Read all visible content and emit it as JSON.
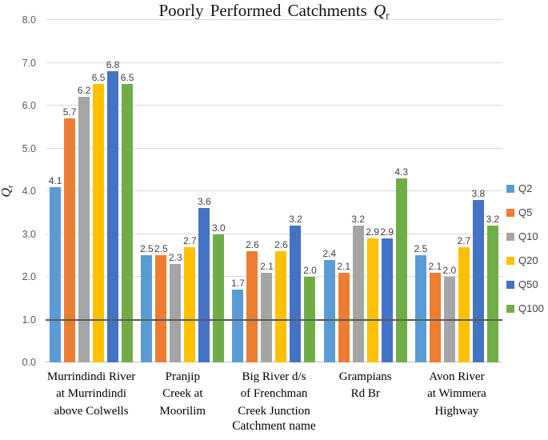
{
  "chart_data": {
    "type": "bar",
    "title": "Poorly Performed Catchments Qr",
    "title_parts": {
      "text": "Poorly Performed Catchments",
      "symbol": "Q",
      "sub": "r"
    },
    "xlabel": "Catchment name",
    "ylabel": "Qr",
    "ylabel_parts": {
      "symbol": "Q",
      "sub": "r"
    },
    "ylim": [
      0,
      8
    ],
    "ytick_step": 1,
    "ytick_decimals": 1,
    "grid": true,
    "gridline_color": "#D9D9D9",
    "reference_line": {
      "y": 1.0,
      "color": "#595959"
    },
    "legend_position": "right",
    "categories": [
      "Murrindindi River at Murrindindi above Colwells",
      "Pranjip Creek at Moorilim",
      "Big River d/s of Frenchman Creek Junction",
      "Grampians Rd Br",
      "Avon River at Wimmera Highway"
    ],
    "category_label_lines": [
      [
        "Murrindindi River",
        "at Murrindindi",
        "above Colwells"
      ],
      [
        "Pranjip",
        "Creek at",
        "Moorilim"
      ],
      [
        "Big River d/s",
        "of Frenchman",
        "Creek Junction"
      ],
      [
        "Grampians",
        "Rd Br"
      ],
      [
        "Avon River",
        "at Wimmera",
        "Highway"
      ]
    ],
    "series": [
      {
        "name": "Q2",
        "color": "#5B9BD5",
        "values": [
          4.1,
          2.5,
          1.7,
          2.4,
          2.5
        ]
      },
      {
        "name": "Q5",
        "color": "#ED7D31",
        "values": [
          5.7,
          2.5,
          2.6,
          2.1,
          2.1
        ]
      },
      {
        "name": "Q10",
        "color": "#A5A5A5",
        "values": [
          6.2,
          2.3,
          2.1,
          3.2,
          2.0
        ]
      },
      {
        "name": "Q20",
        "color": "#FFC000",
        "values": [
          6.5,
          2.7,
          2.6,
          2.9,
          2.7
        ]
      },
      {
        "name": "Q50",
        "color": "#4472C4",
        "values": [
          6.8,
          3.6,
          3.2,
          2.9,
          3.8
        ]
      },
      {
        "name": "Q100",
        "color": "#70AD47",
        "values": [
          6.5,
          3.0,
          2.0,
          4.3,
          3.2
        ]
      }
    ]
  }
}
